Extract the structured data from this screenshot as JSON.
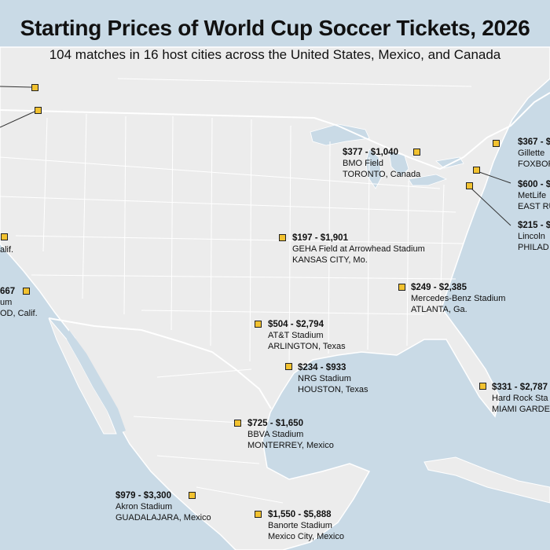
{
  "title": "Starting Prices of World Cup Soccer Tickets, 2026",
  "subtitle": "104 matches in 16 host cities across the United States, Mexico, and Canada",
  "colors": {
    "water": "#c9dae6",
    "land": "#ececec",
    "border": "#ffffff",
    "marker": "#f2c230"
  },
  "venues": [
    {
      "price": "$377 - $1,040",
      "stadium": "BMO Field",
      "city": "TORONTO, Canada"
    },
    {
      "price": "$367 - $",
      "stadium": "Gillette",
      "city": "FOXBOR"
    },
    {
      "price": "$600 - $",
      "stadium": "MetLife",
      "city": "EAST RU"
    },
    {
      "price": "$215 - $",
      "stadium": "Lincoln",
      "city": "PHILAD"
    },
    {
      "price": "$197 - $1,901",
      "stadium": "GEHA Field at Arrowhead Stadium",
      "city": "KANSAS CITY, Mo."
    },
    {
      "price": "$249 - $2,385",
      "stadium": "Mercedes-Benz Stadium",
      "city": "ATLANTA, Ga."
    },
    {
      "price": "$504 - $2,794",
      "stadium": "AT&T Stadium",
      "city": "ARLINGTON, Texas"
    },
    {
      "price": "$234 - $933",
      "stadium": "NRG Stadium",
      "city": "HOUSTON, Texas"
    },
    {
      "price": "$331 - $2,787",
      "stadium": "Hard Rock Sta",
      "city": "MIAMI GARDE"
    },
    {
      "price": "$725 - $1,650",
      "stadium": "BBVA Stadium",
      "city": "MONTERREY, Mexico"
    },
    {
      "price": "$979 - $3,300",
      "stadium": "Akron Stadium",
      "city": "GUADALAJARA, Mexico"
    },
    {
      "price": "$1,550 - $5,888",
      "stadium": "Banorte Stadium",
      "city": "Mexico City, Mexico"
    },
    {
      "price": "",
      "stadium": "",
      "city": "alif."
    },
    {
      "price": "667",
      "stadium": "um",
      "city": "OD, Calif."
    }
  ]
}
